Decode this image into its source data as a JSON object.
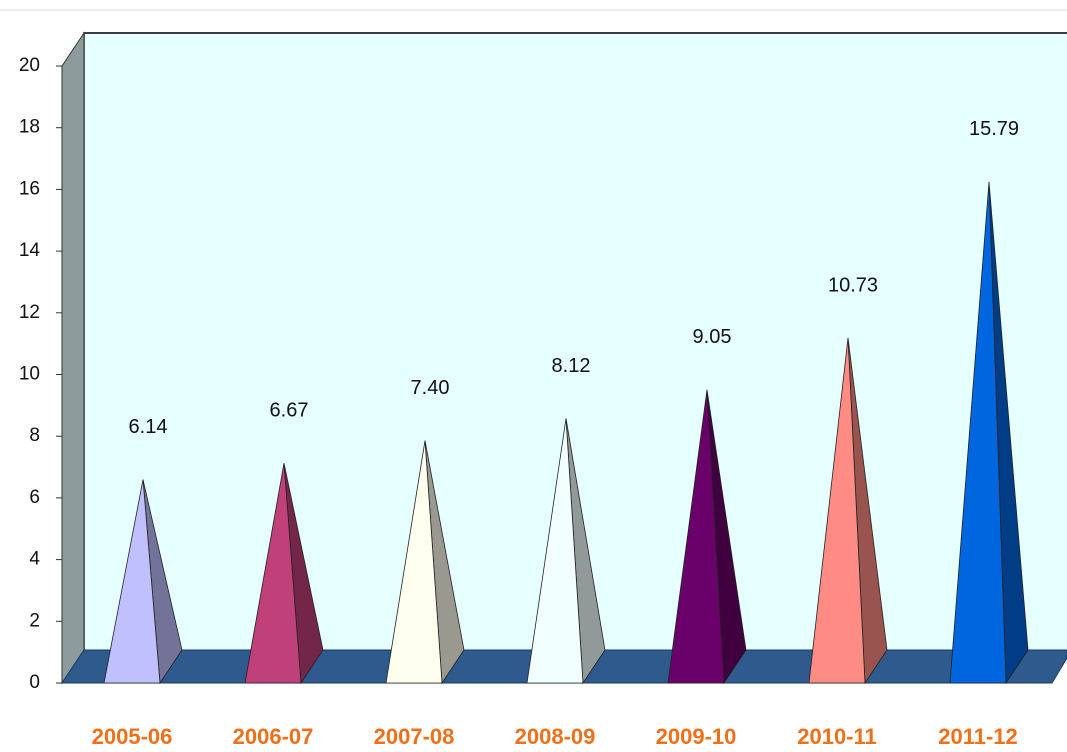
{
  "chart_data": {
    "type": "bar3d-pyramid",
    "categories": [
      "2005-06",
      "2006-07",
      "2007-08",
      "2008-09",
      "2009-10",
      "2010-11",
      "2011-12"
    ],
    "values": [
      6.14,
      6.67,
      7.4,
      8.12,
      9.05,
      10.73,
      15.79
    ],
    "value_labels": [
      "6.14",
      "6.67",
      "7.40",
      "8.12",
      "9.05",
      "10.73",
      "15.79"
    ],
    "colors": [
      "#c0c0ff",
      "#c0407a",
      "#fffff0",
      "#f2ffff",
      "#6a006a",
      "#ff8c84",
      "#0066e0"
    ],
    "ylim": [
      0,
      20
    ],
    "yticks": [
      0,
      2,
      4,
      6,
      8,
      10,
      12,
      14,
      16,
      18,
      20
    ],
    "grid": false
  }
}
